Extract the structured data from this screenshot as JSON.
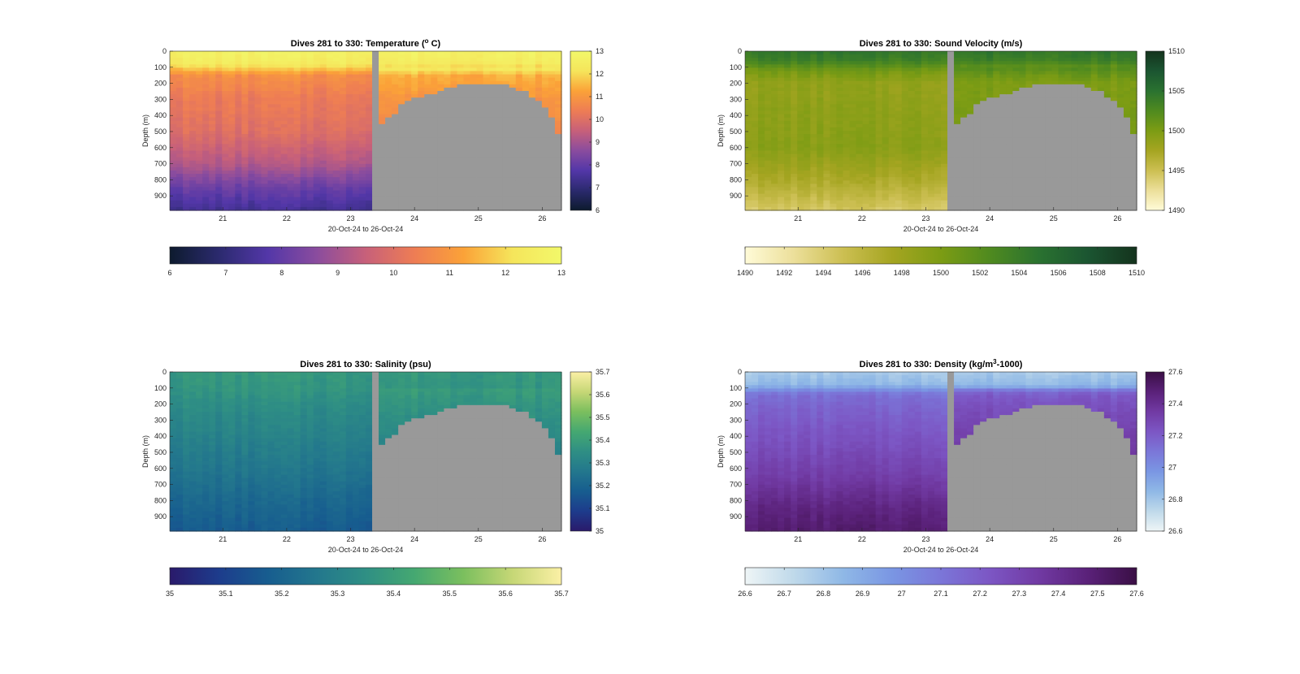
{
  "figure": {
    "background": "#ffffff",
    "fill_color": "#999999"
  },
  "chart_data": [
    {
      "type": "heatmap",
      "title": "Dives 281 to 330: Temperature (° C)",
      "title_parts": [
        "Dives 281 to 330: Temperature (",
        "o",
        " C)"
      ],
      "xlabel": "20-Oct-24 to 26-Oct-24",
      "ylabel": "Depth (m)",
      "x_ticks": [
        "21",
        "22",
        "23",
        "24",
        "25",
        "26"
      ],
      "x_tick_values": [
        21,
        22,
        23,
        24,
        25,
        26
      ],
      "xlim": [
        20.17,
        26.3
      ],
      "ylim": [
        990,
        0
      ],
      "y_ticks": [
        "0",
        "100",
        "200",
        "300",
        "400",
        "500",
        "600",
        "700",
        "800",
        "900"
      ],
      "y_tick_values": [
        0,
        100,
        200,
        300,
        400,
        500,
        600,
        700,
        800,
        900
      ],
      "gap": [
        23.35,
        23.47
      ],
      "bottom_depth_profile": {
        "x": [
          23.47,
          23.6,
          23.7,
          23.8,
          23.9,
          24.0,
          24.2,
          24.4,
          24.6,
          24.8,
          25.0,
          25.2,
          25.35,
          25.5,
          25.65,
          25.8,
          25.95,
          26.05,
          26.15,
          26.2,
          26.3
        ],
        "depth": [
          450,
          420,
          380,
          330,
          305,
          290,
          270,
          250,
          220,
          205,
          200,
          200,
          200,
          215,
          240,
          270,
          320,
          360,
          420,
          480,
          540
        ]
      },
      "colorbar": {
        "min": 6,
        "max": 13,
        "ticks": [
          "6",
          "7",
          "8",
          "9",
          "10",
          "11",
          "12",
          "13"
        ],
        "tick_values": [
          6,
          7,
          8,
          9,
          10,
          11,
          12,
          13
        ],
        "colormap": [
          "#0d1b2e",
          "#2b2a6e",
          "#5337a8",
          "#8a4c9e",
          "#c7607a",
          "#ee7d54",
          "#fba238",
          "#f5e55b",
          "#f2f86a"
        ]
      },
      "profile": {
        "depth": [
          0,
          80,
          150,
          300,
          500,
          700,
          850,
          990
        ],
        "value": [
          12.7,
          12.4,
          10.8,
          10.3,
          10.0,
          9.2,
          8.1,
          7.4
        ]
      }
    },
    {
      "type": "heatmap",
      "title": "Dives 281 to 330: Sound Velocity (m/s)",
      "title_parts": [
        "Dives 281 to 330: Sound Velocity (m/s)"
      ],
      "xlabel": "20-Oct-24 to 26-Oct-24",
      "ylabel": "Depth (m)",
      "x_ticks": [
        "21",
        "22",
        "23",
        "24",
        "25",
        "26"
      ],
      "x_tick_values": [
        21,
        22,
        23,
        24,
        25,
        26
      ],
      "xlim": [
        20.17,
        26.3
      ],
      "ylim": [
        990,
        0
      ],
      "y_ticks": [
        "0",
        "100",
        "200",
        "300",
        "400",
        "500",
        "600",
        "700",
        "800",
        "900"
      ],
      "y_tick_values": [
        0,
        100,
        200,
        300,
        400,
        500,
        600,
        700,
        800,
        900
      ],
      "gap": [
        23.35,
        23.47
      ],
      "bottom_depth_profile": {
        "x": [
          23.47,
          23.6,
          23.7,
          23.8,
          23.9,
          24.0,
          24.2,
          24.4,
          24.6,
          24.8,
          25.0,
          25.2,
          25.35,
          25.5,
          25.65,
          25.8,
          25.95,
          26.05,
          26.15,
          26.2,
          26.3
        ],
        "depth": [
          450,
          420,
          380,
          330,
          305,
          290,
          270,
          250,
          220,
          205,
          200,
          200,
          200,
          215,
          240,
          270,
          320,
          360,
          420,
          480,
          540
        ]
      },
      "colorbar": {
        "min": 1490,
        "max": 1510,
        "ticks": [
          "1490",
          "1492",
          "1494",
          "1496",
          "1498",
          "1500",
          "1502",
          "1504",
          "1506",
          "1508",
          "1510"
        ],
        "tick_values": [
          1490,
          1492,
          1494,
          1496,
          1498,
          1500,
          1502,
          1504,
          1506,
          1508,
          1510
        ],
        "vertical_ticks": [
          "1490",
          "1495",
          "1500",
          "1505",
          "1510"
        ],
        "vertical_tick_values": [
          1490,
          1495,
          1500,
          1505,
          1510
        ],
        "colormap": [
          "#fffbd8",
          "#ecdf9a",
          "#ccbf52",
          "#a5a521",
          "#7c9c14",
          "#4f8a1f",
          "#2a7230",
          "#1b5531",
          "#14331d"
        ]
      },
      "profile": {
        "depth": [
          0,
          60,
          120,
          200,
          400,
          600,
          800,
          990
        ],
        "value": [
          1504.5,
          1503.6,
          1500.5,
          1498.6,
          1498.9,
          1499.2,
          1497.0,
          1494.3
        ]
      }
    },
    {
      "type": "heatmap",
      "title": "Dives 281 to 330: Salinity (psu)",
      "title_parts": [
        "Dives 281 to 330: Salinity (psu)"
      ],
      "xlabel": "20-Oct-24 to 26-Oct-24",
      "ylabel": "Depth (m)",
      "x_ticks": [
        "21",
        "22",
        "23",
        "24",
        "25",
        "26"
      ],
      "x_tick_values": [
        21,
        22,
        23,
        24,
        25,
        26
      ],
      "xlim": [
        20.17,
        26.3
      ],
      "ylim": [
        990,
        0
      ],
      "y_ticks": [
        "0",
        "100",
        "200",
        "300",
        "400",
        "500",
        "600",
        "700",
        "800",
        "900"
      ],
      "y_tick_values": [
        0,
        100,
        200,
        300,
        400,
        500,
        600,
        700,
        800,
        900
      ],
      "gap": [
        23.35,
        23.47
      ],
      "bottom_depth_profile": {
        "x": [
          23.47,
          23.6,
          23.7,
          23.8,
          23.9,
          24.0,
          24.2,
          24.4,
          24.6,
          24.8,
          25.0,
          25.2,
          25.35,
          25.5,
          25.65,
          25.8,
          25.95,
          26.05,
          26.15,
          26.2,
          26.3
        ],
        "depth": [
          450,
          420,
          380,
          330,
          305,
          290,
          270,
          250,
          220,
          205,
          200,
          200,
          200,
          215,
          240,
          270,
          320,
          360,
          420,
          480,
          540
        ]
      },
      "colorbar": {
        "min": 35,
        "max": 35.7,
        "ticks": [
          "35",
          "35.1",
          "35.2",
          "35.3",
          "35.4",
          "35.5",
          "35.6",
          "35.7"
        ],
        "tick_values": [
          35,
          35.1,
          35.2,
          35.3,
          35.4,
          35.5,
          35.6,
          35.7
        ],
        "colormap": [
          "#2a1a6b",
          "#1d3c8c",
          "#175d8f",
          "#23778d",
          "#2f8f84",
          "#45a871",
          "#7bbf5e",
          "#c6d776",
          "#fbf0a5"
        ]
      },
      "profile": {
        "depth": [
          0,
          100,
          200,
          400,
          600,
          800,
          990
        ],
        "value": [
          35.38,
          35.37,
          35.34,
          35.3,
          35.26,
          35.21,
          35.17
        ]
      }
    },
    {
      "type": "heatmap",
      "title": "Dives 281 to 330: Density (kg/m³-1000)",
      "title_parts": [
        "Dives 281 to 330: Density (kg/m",
        "3",
        "-1000)"
      ],
      "xlabel": "20-Oct-24 to 26-Oct-24",
      "ylabel": "Depth (m)",
      "x_ticks": [
        "21",
        "22",
        "23",
        "24",
        "25",
        "26"
      ],
      "x_tick_values": [
        21,
        22,
        23,
        24,
        25,
        26
      ],
      "xlim": [
        20.17,
        26.3
      ],
      "ylim": [
        990,
        0
      ],
      "y_ticks": [
        "0",
        "100",
        "200",
        "300",
        "400",
        "500",
        "600",
        "700",
        "800",
        "900"
      ],
      "y_tick_values": [
        0,
        100,
        200,
        300,
        400,
        500,
        600,
        700,
        800,
        900
      ],
      "gap": [
        23.35,
        23.47
      ],
      "bottom_depth_profile": {
        "x": [
          23.47,
          23.6,
          23.7,
          23.8,
          23.9,
          24.0,
          24.2,
          24.4,
          24.6,
          24.8,
          25.0,
          25.2,
          25.35,
          25.5,
          25.65,
          25.8,
          25.95,
          26.05,
          26.15,
          26.2,
          26.3
        ],
        "depth": [
          450,
          420,
          380,
          330,
          305,
          290,
          270,
          250,
          220,
          205,
          200,
          200,
          200,
          215,
          240,
          270,
          320,
          360,
          420,
          480,
          540
        ]
      },
      "colorbar": {
        "min": 26.6,
        "max": 27.6,
        "ticks": [
          "26.6",
          "26.7",
          "26.8",
          "26.9",
          "27",
          "27.1",
          "27.2",
          "27.3",
          "27.4",
          "27.5",
          "27.6"
        ],
        "tick_values": [
          26.6,
          26.7,
          26.8,
          26.9,
          27.0,
          27.1,
          27.2,
          27.3,
          27.4,
          27.5,
          27.6
        ],
        "vertical_ticks": [
          "26.6",
          "26.8",
          "27",
          "27.2",
          "27.4",
          "27.6"
        ],
        "vertical_tick_values": [
          26.6,
          26.8,
          27.0,
          27.2,
          27.4,
          27.6
        ],
        "colormap": [
          "#eef5f6",
          "#bfd9ea",
          "#8fb8e6",
          "#7a96e3",
          "#7b76d8",
          "#7c56c4",
          "#713aa3",
          "#5a2179",
          "#3a0f45"
        ]
      },
      "profile": {
        "depth": [
          0,
          80,
          140,
          250,
          450,
          650,
          850,
          990
        ],
        "value": [
          26.78,
          26.85,
          27.12,
          27.18,
          27.25,
          27.33,
          27.45,
          27.5
        ]
      }
    }
  ]
}
